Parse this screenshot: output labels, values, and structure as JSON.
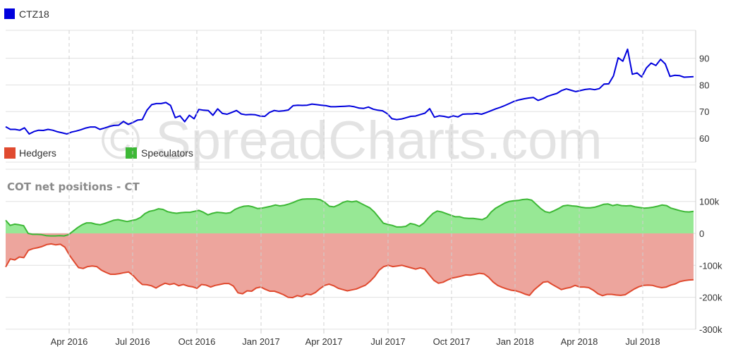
{
  "watermark": "© SpreadCharts.com",
  "colors": {
    "price_line": "#0000dd",
    "speculators_fill": "#97e895",
    "speculators_line": "#3db836",
    "hedgers_fill": "#eda59d",
    "hedgers_line": "#e04a2f",
    "grid": "#e0e0e0",
    "axis": "#cccccc"
  },
  "chart_data": [
    {
      "type": "line",
      "legend": [
        {
          "name": "CTZ18",
          "color": "#0000dd"
        }
      ],
      "x_labels": [
        "Apr 2016",
        "Jul 2016",
        "Oct 2016",
        "Jan 2017",
        "Apr 2017",
        "Jul 2017",
        "Oct 2017",
        "Jan 2018",
        "Apr 2018",
        "Jul 2018"
      ],
      "y_ticks": [
        60,
        70,
        80,
        90
      ],
      "ylim": [
        51,
        100.5
      ],
      "grid": true,
      "series": [
        {
          "name": "CTZ18",
          "values": [
            64.3,
            63.3,
            63.3,
            63.0,
            63.9,
            61.6,
            62.5,
            63.0,
            62.9,
            63.3,
            63.0,
            62.4,
            62.0,
            61.6,
            62.3,
            62.7,
            63.2,
            63.8,
            64.2,
            64.2,
            63.3,
            63.8,
            64.4,
            64.8,
            64.9,
            66.3,
            65.2,
            65.9,
            66.8,
            67.0,
            70.5,
            72.6,
            73.0,
            73.0,
            73.4,
            72.3,
            67.7,
            68.4,
            66.2,
            68.6,
            67.3,
            70.8,
            70.5,
            70.4,
            68.6,
            71.0,
            69.3,
            69.0,
            69.7,
            70.4,
            69.1,
            68.8,
            68.9,
            68.8,
            68.3,
            68.2,
            69.7,
            70.4,
            70.1,
            70.3,
            70.6,
            72.2,
            72.4,
            72.3,
            72.4,
            72.8,
            72.6,
            72.4,
            72.2,
            71.8,
            71.8,
            71.9,
            72.0,
            72.1,
            71.8,
            71.3,
            71.2,
            71.7,
            70.9,
            70.5,
            70.3,
            69.2,
            67.3,
            67.0,
            67.2,
            67.7,
            68.2,
            68.3,
            68.9,
            69.4,
            71.1,
            67.9,
            68.4,
            68.2,
            67.8,
            68.4,
            68.0,
            69.0,
            69.1,
            69.1,
            69.3,
            69.0,
            69.6,
            70.3,
            71.0,
            71.6,
            72.3,
            73.1,
            73.9,
            74.4,
            74.8,
            75.1,
            75.3,
            74.2,
            74.8,
            75.7,
            76.3,
            76.8,
            77.9,
            78.5,
            78.0,
            77.5,
            77.9,
            78.3,
            78.5,
            78.2,
            78.6,
            80.3,
            80.4,
            83.4,
            90.2,
            88.9,
            93.4,
            84.0,
            84.5,
            83.0,
            86.4,
            88.2,
            87.3,
            89.6,
            87.9,
            83.2,
            83.6,
            83.5,
            82.9,
            83.0,
            83.1
          ]
        }
      ]
    },
    {
      "type": "area",
      "title": "COT net positions - CT",
      "legend": [
        {
          "name": "Hedgers",
          "color": "#e04a2f"
        },
        {
          "name": "Speculators",
          "color": "#3db836"
        }
      ],
      "x_labels": [
        "Apr 2016",
        "Jul 2016",
        "Oct 2016",
        "Jan 2017",
        "Apr 2017",
        "Jul 2017",
        "Oct 2017",
        "Jan 2018",
        "Apr 2018",
        "Jul 2018"
      ],
      "y_tick_labels": [
        "100k",
        "0",
        "-100k",
        "-200k",
        "-300k"
      ],
      "y_ticks": [
        100000,
        0,
        -100000,
        -200000,
        -300000
      ],
      "ylim": [
        -300000,
        100000
      ],
      "grid": true,
      "series": [
        {
          "name": "Speculators",
          "values": [
            41000,
            25000,
            29000,
            27000,
            24000,
            0,
            -3000,
            -3000,
            -4000,
            -7000,
            -8000,
            -8000,
            -7000,
            -8000,
            -4000,
            7000,
            18000,
            27000,
            33000,
            33000,
            29000,
            27000,
            31000,
            36000,
            41000,
            43000,
            40000,
            37000,
            40000,
            43000,
            50000,
            62000,
            69000,
            72000,
            77000,
            75000,
            68000,
            65000,
            63000,
            65000,
            66000,
            66000,
            69000,
            72000,
            66000,
            58000,
            63000,
            66000,
            65000,
            63000,
            65000,
            75000,
            81000,
            85000,
            86000,
            83000,
            78000,
            79000,
            82000,
            85000,
            89000,
            86000,
            88000,
            92000,
            97000,
            103000,
            107000,
            108000,
            108000,
            108000,
            105000,
            97000,
            85000,
            83000,
            89000,
            97000,
            101000,
            99000,
            101000,
            94000,
            87000,
            80000,
            67000,
            50000,
            32000,
            28000,
            25000,
            20000,
            20000,
            22000,
            31000,
            28000,
            22000,
            32000,
            48000,
            62000,
            70000,
            67000,
            62000,
            57000,
            52000,
            52000,
            48000,
            47000,
            47000,
            45000,
            43000,
            50000,
            67000,
            79000,
            87000,
            95000,
            100000,
            102000,
            103000,
            106000,
            107000,
            104000,
            91000,
            78000,
            68000,
            65000,
            71000,
            78000,
            86000,
            88000,
            86000,
            85000,
            82000,
            80000,
            80000,
            82000,
            86000,
            91000,
            92000,
            87000,
            90000,
            87000,
            86000,
            87000,
            83000,
            81000,
            79000,
            80000,
            82000,
            85000,
            89000,
            87000,
            79000,
            75000,
            71000,
            68000,
            67000,
            69000
          ]
        },
        {
          "name": "Hedgers",
          "values": [
            -105000,
            -80000,
            -83000,
            -74000,
            -76000,
            -53000,
            -48000,
            -45000,
            -41000,
            -35000,
            -33000,
            -36000,
            -34000,
            -43000,
            -68000,
            -88000,
            -107000,
            -110000,
            -104000,
            -102000,
            -104000,
            -115000,
            -122000,
            -128000,
            -128000,
            -126000,
            -123000,
            -121000,
            -132000,
            -148000,
            -160000,
            -161000,
            -164000,
            -171000,
            -163000,
            -156000,
            -160000,
            -157000,
            -164000,
            -160000,
            -165000,
            -167000,
            -172000,
            -160000,
            -162000,
            -168000,
            -163000,
            -160000,
            -157000,
            -157000,
            -165000,
            -186000,
            -189000,
            -180000,
            -181000,
            -171000,
            -168000,
            -175000,
            -181000,
            -181000,
            -186000,
            -192000,
            -200000,
            -201000,
            -195000,
            -198000,
            -190000,
            -192000,
            -185000,
            -173000,
            -163000,
            -159000,
            -164000,
            -172000,
            -176000,
            -180000,
            -177000,
            -174000,
            -168000,
            -162000,
            -150000,
            -135000,
            -115000,
            -104000,
            -100000,
            -104000,
            -102000,
            -100000,
            -104000,
            -108000,
            -112000,
            -108000,
            -112000,
            -130000,
            -147000,
            -156000,
            -153000,
            -146000,
            -140000,
            -137000,
            -134000,
            -130000,
            -131000,
            -128000,
            -125000,
            -127000,
            -137000,
            -152000,
            -163000,
            -169000,
            -174000,
            -178000,
            -180000,
            -184000,
            -190000,
            -194000,
            -177000,
            -165000,
            -153000,
            -151000,
            -160000,
            -168000,
            -176000,
            -172000,
            -169000,
            -163000,
            -168000,
            -168000,
            -170000,
            -178000,
            -189000,
            -195000,
            -191000,
            -191000,
            -193000,
            -194000,
            -192000,
            -183000,
            -174000,
            -167000,
            -163000,
            -162000,
            -163000,
            -167000,
            -170000,
            -168000,
            -162000,
            -158000,
            -151000,
            -148000,
            -146000,
            -145000
          ]
        }
      ]
    }
  ]
}
